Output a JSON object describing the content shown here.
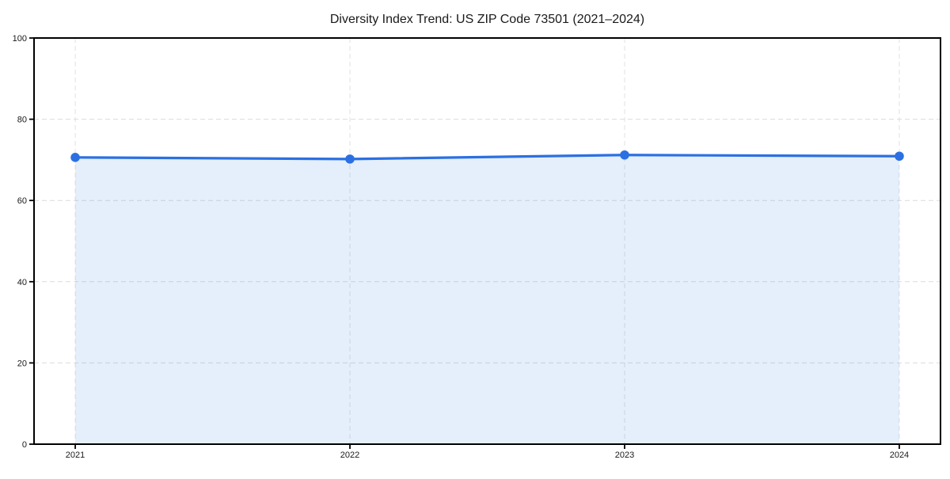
{
  "figure": {
    "background": "#ffffff"
  },
  "chart_data": {
    "type": "line",
    "title": "Diversity Index Trend: US ZIP Code 73501 (2021–2024)",
    "x": [
      2021,
      2022,
      2023,
      2024
    ],
    "x_tick_labels": [
      "2021",
      "2022",
      "2023",
      "2024"
    ],
    "series": [
      {
        "name": "Diversity Index",
        "values": [
          70.6,
          70.2,
          71.2,
          70.9
        ]
      }
    ],
    "ylim": [
      0,
      100
    ],
    "yticks": [
      0,
      20,
      40,
      60,
      80,
      100
    ],
    "ytick_labels": [
      "0",
      "20",
      "40",
      "60",
      "80",
      "100"
    ],
    "xlabel": "",
    "ylabel": "",
    "x_margin_fraction": 0.05,
    "grid": {
      "visible": true,
      "style": "dashed",
      "color": "#dcdcdc"
    },
    "area_fill": {
      "visible": true,
      "color": "rgba(43,112,226,0.12)",
      "baseline": 0
    },
    "line": {
      "color": "#2b70e2",
      "width": 3.2
    },
    "marker": {
      "shape": "circle",
      "color": "#2b70e2",
      "radius": 5.8
    },
    "axes": {
      "spine_color": "#000000",
      "tick_color": "#000000",
      "tick_label_color": "#1a1a1a",
      "box": true
    },
    "legend": {
      "visible": false
    }
  }
}
